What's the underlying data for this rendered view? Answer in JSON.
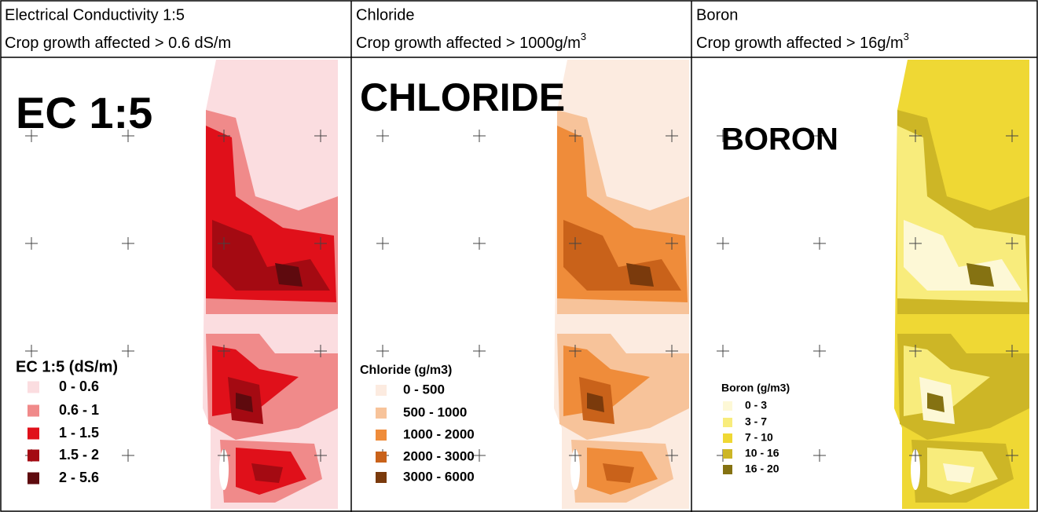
{
  "panels": [
    {
      "header": {
        "title": "Electrical Conductivity 1:5",
        "subtitle": "Crop growth affected > 0.6 dS/m"
      },
      "map_label": "EC 1:5",
      "legend": {
        "title": "EC 1:5 (dS/m)",
        "items": [
          {
            "label": "0 - 0.6",
            "color": "#fbdde0"
          },
          {
            "label": "0.6 - 1",
            "color": "#f08a8a"
          },
          {
            "label": "1 - 1.5",
            "color": "#e0101a"
          },
          {
            "label": "1.5 - 2",
            "color": "#a40a12"
          },
          {
            "label": "2 - 5.6",
            "color": "#5e0a0e"
          }
        ]
      }
    },
    {
      "header": {
        "title": "Chloride",
        "subtitle": "Crop growth affected > 1000g/m",
        "subtitle_superscript": "3"
      },
      "map_label": "CHLORIDE",
      "legend": {
        "title": "Chloride (g/m3)",
        "items": [
          {
            "label": "0 - 500",
            "color": "#fcebe0"
          },
          {
            "label": "500 - 1000",
            "color": "#f7c39a"
          },
          {
            "label": "1000 - 2000",
            "color": "#ef8c3a"
          },
          {
            "label": "2000 - 3000",
            "color": "#c9621a"
          },
          {
            "label": "3000 - 6000",
            "color": "#7a3a0c"
          }
        ]
      }
    },
    {
      "header": {
        "title": "Boron",
        "subtitle": "Crop growth affected > 16g/m",
        "subtitle_superscript": "3"
      },
      "map_label": "BORON",
      "legend": {
        "title": "Boron (g/m3)",
        "items": [
          {
            "label": "0 - 3",
            "color": "#fdf8d6"
          },
          {
            "label": "3 - 7",
            "color": "#f8ec7c"
          },
          {
            "label": "7 - 10",
            "color": "#efd834"
          },
          {
            "label": "10 - 16",
            "color": "#cdb626"
          },
          {
            "label": "16 - 20",
            "color": "#857212"
          }
        ]
      }
    }
  ]
}
